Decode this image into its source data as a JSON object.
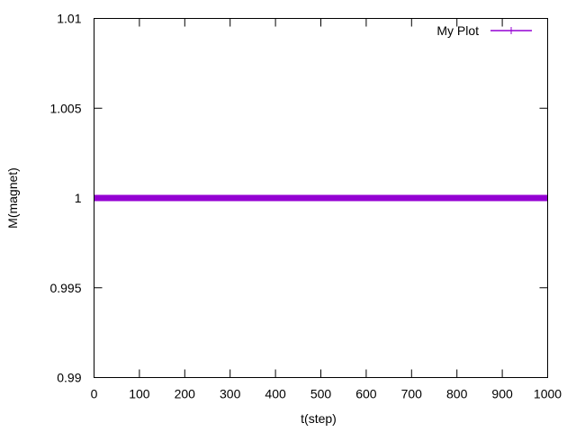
{
  "chart_data": {
    "type": "line",
    "xlabel": "t(step)",
    "ylabel": "M(magnet)",
    "xlim": [
      0,
      1000
    ],
    "ylim": [
      0.99,
      1.01
    ],
    "x_ticks": [
      "0",
      "100",
      "200",
      "300",
      "400",
      "500",
      "600",
      "700",
      "800",
      "900",
      "1000"
    ],
    "y_ticks": [
      "0.99",
      "0.995",
      "1",
      "1.005",
      "1.01"
    ],
    "grid": false,
    "legend_position": "top-right",
    "series": [
      {
        "name": "My Plot",
        "color": "#9400d3",
        "marker": "plus",
        "x": [
          0,
          1000
        ],
        "y": [
          1,
          1
        ]
      }
    ]
  }
}
